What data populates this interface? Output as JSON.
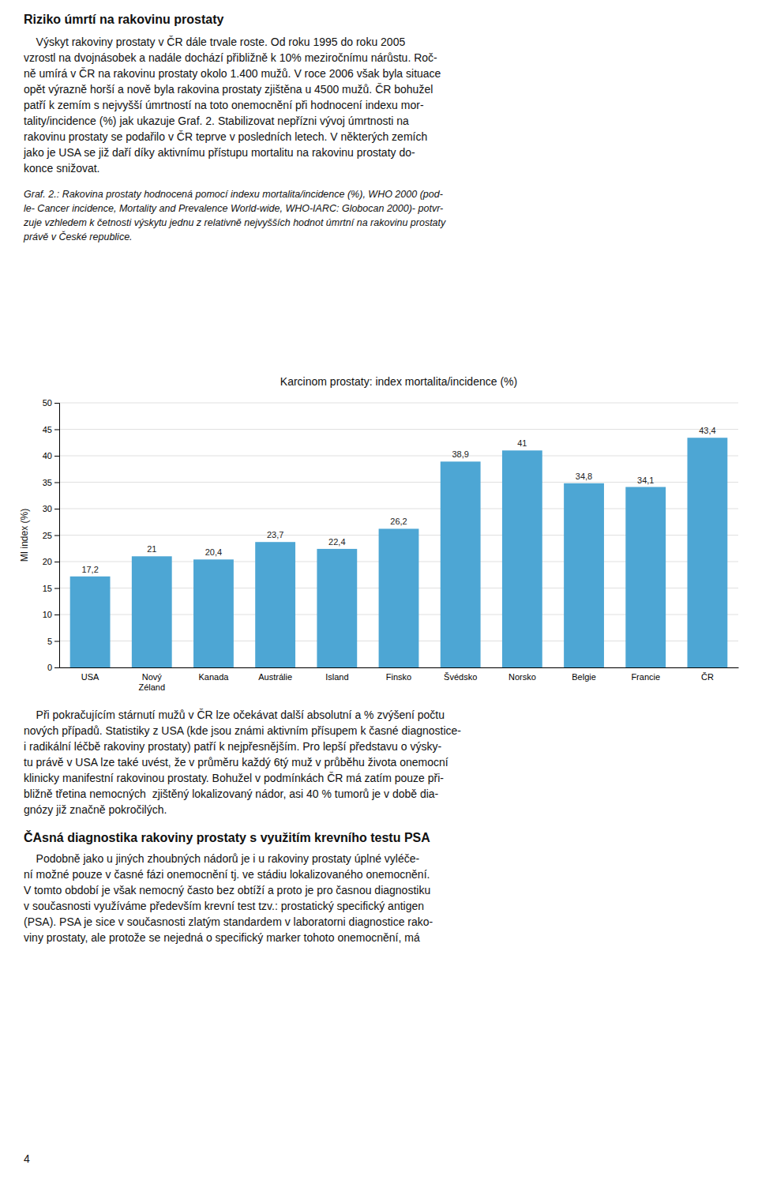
{
  "heading_above": "Riziko úmrtí na rakovinu prostaty",
  "text_above": [
    "    Výskyt rakoviny prostaty v ČR dále trvale roste. Od roku 1995 do roku 2005",
    "vzrostl na dvojnásobek a nadále dochází přibližně k 10% meziročnímu nárůstu. Roč-",
    "ně umírá v ČR na rakovinu prostaty okolo 1.400 mužů. V roce 2006 však byla situace",
    "opět výrazně horší a nově byla rakovina prostaty zjištěna u 4500 mužů. ČR bohužel",
    "patří k zemím s nejvyšší úmrtností na toto onemocnění při hodnocení indexu mor-",
    "tality/incidence (%) jak ukazuje Graf. 2. Stabilizovat nepřízni vývoj úmrtnosti na",
    "rakovinu prostaty se podařilo v ČR teprve v posledních letech. V některých zemích",
    "jako je USA se již daří díky aktivnímu přístupu mortalitu na rakovinu prostaty do-",
    "konce snižovat."
  ],
  "text_caption": [
    "Graf. 2.: Rakovina prostaty hodnocená pomocí indexu mortalita/incidence (%), WHO 2000 (pod-",
    "le- Cancer incidence, Mortality and Prevalence World-wide, WHO-IARC: Globocan 2000)- potvr-",
    "zuje vzhledem k četnosti výskytu jednu z relativně nejvyšších hodnot úmrtní na rakovinu prostaty",
    "právě v České republice."
  ],
  "text_below": [
    "    Při pokračujícím stárnutí mužů v ČR lze očekávat další absolutní a % zvýšení počtu",
    "nových případů. Statistiky z USA (kde jsou známi aktivním přísupem k časné diagnostice-",
    "i radikální léčbě rakoviny prostaty) patří k nejpřesnějším. Pro lepší představu o výsky-",
    "tu právě v USA lze také uvést, že v průměru každý 6tý muž v průběhu života onemocní",
    "klinicky manifestní rakovinou prostaty. Bohužel v podmínkách ČR má zatím pouze při-",
    "bližně třetina nemocných  zjištěný lokalizovaný nádor, asi 40 % tumorů je v době dia-",
    "gnózy již značně pokročilých."
  ],
  "heading_below": "ČAsná diagnostika rakoviny prostaty s využitím krevního testu PSA",
  "text_below_2": [
    "    Podobně jako u jiných zhoubných nádorů je i u rakoviny prostaty úplné vyléče-",
    "ní možné pouze v časné fázi onemocnění tj. ve stádiu lokalizovaného onemocnění.",
    "V tomto období je však nemocný často bez obtíží a proto je pro časnou diagnostiku",
    "v současnosti využíváme především krevní test tzv.: prostatický specifický antigen",
    "(PSA). PSA je sice v současnosti zlatým standardem v laboratorni diagnostice rako-",
    "viny prostaty, ale protože se nejedná o specifický marker tohoto onemocnění, má"
  ],
  "page_number": "4",
  "chart_data": {
    "type": "bar",
    "title": "Karcinom prostaty: index mortalita/incidence (%)",
    "ylabel": "MI index (%)",
    "categories": [
      "USA",
      "Nový\nZéland",
      "Kanada",
      "Austrálie",
      "Island",
      "Finsko",
      "Švédsko",
      "Norsko",
      "Belgie",
      "Francie",
      "ČR"
    ],
    "values": [
      17.2,
      21.0,
      20.4,
      23.7,
      22.4,
      26.2,
      38.9,
      41.0,
      34.8,
      34.1,
      43.4
    ],
    "value_labels": [
      "17,2",
      "21",
      "20,4",
      "23,7",
      "22,4",
      "26,2",
      "38,9",
      "41",
      "34,8",
      "34,1",
      "43,4"
    ],
    "color": "#4da6d4",
    "ylim": [
      0,
      50
    ],
    "yticks": [
      0,
      5,
      10,
      15,
      20,
      25,
      30,
      35,
      40,
      45,
      50
    ],
    "grid": true
  }
}
